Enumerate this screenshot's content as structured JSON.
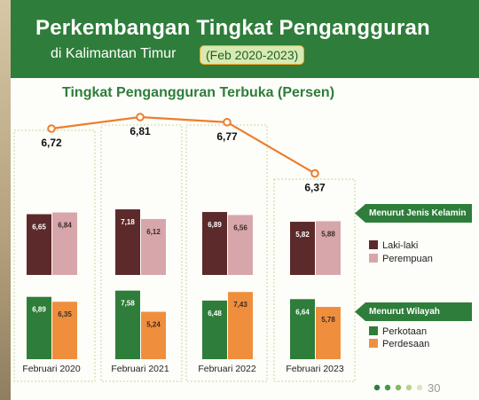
{
  "header": {
    "title": "Perkembangan Tingkat Pengangguran",
    "subtitle": "di Kalimantan Timur",
    "period": "(Feb 2020-2023)"
  },
  "colors": {
    "header_green": "#2e7d3a",
    "line_orange": "#ec7e2f",
    "laki": "#5c2a2a",
    "perempuan": "#d7a6ab",
    "perkotaan": "#2e7d3a",
    "perdesaan": "#ef8f3d"
  },
  "legend": {
    "gender_tag": "Menurut Jenis Kelamin",
    "laki": "Laki-laki",
    "perempuan": "Perempuan",
    "region_tag": "Menurut  Wilayah",
    "perkotaan": "Perkotaan",
    "perdesaan": "Perdesaan"
  },
  "chart_data": [
    {
      "type": "line",
      "title": "Tingkat Pengangguran Terbuka (Persen)",
      "categories": [
        "Februari 2020",
        "Februari 2021",
        "Februari 2022",
        "Februari 2023"
      ],
      "series": [
        {
          "name": "",
          "values": [
            6.72,
            6.81,
            6.77,
            6.37
          ]
        }
      ],
      "data_labels": [
        "6,72",
        "6,81",
        "6,77",
        "6,37"
      ],
      "grid": false
    },
    {
      "type": "bar",
      "categories": [
        "Februari 2020",
        "Februari 2021",
        "Februari 2022",
        "Februari 2023"
      ],
      "series": [
        {
          "name": "Laki-laki",
          "values": [
            6.65,
            7.18,
            6.89,
            5.82
          ],
          "labels": [
            "6,65",
            "7,18",
            "6,89",
            "5,82"
          ]
        },
        {
          "name": "Perempuan",
          "values": [
            6.84,
            6.12,
            6.56,
            5.88
          ],
          "labels": [
            "6,84",
            "6,12",
            "6,56",
            "5,88"
          ]
        }
      ],
      "legend": "right"
    },
    {
      "type": "bar",
      "categories": [
        "Februari 2020",
        "Februari 2021",
        "Februari 2022",
        "Februari 2023"
      ],
      "series": [
        {
          "name": "Perkotaan",
          "values": [
            6.89,
            7.58,
            6.48,
            6.64
          ],
          "labels": [
            "6,89",
            "7,58",
            "6,48",
            "6,64"
          ]
        },
        {
          "name": "Perdesaan",
          "values": [
            6.35,
            5.24,
            7.43,
            5.78
          ],
          "labels": [
            "6,35",
            "5,24",
            "7,43",
            "5,78"
          ]
        }
      ],
      "legend": "right"
    }
  ],
  "footer": {
    "page_number": "30",
    "dot_colors": [
      "#2e7d3a",
      "#3f9a47",
      "#7cbf58",
      "#b3d68a",
      "#d7e8bf"
    ]
  }
}
